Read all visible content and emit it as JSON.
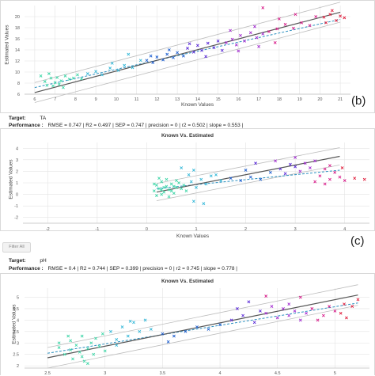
{
  "panels": [
    {
      "letter": "(b)",
      "ylabel": "Estimated Values",
      "xlabel": "Known Values",
      "title": ""
    },
    {
      "letter": "(c)",
      "ylabel": "Estimated Values",
      "xlabel": "Known Values",
      "title": "Known Vs. Estimated"
    },
    {
      "letter": "",
      "ylabel": "Estimated Values",
      "xlabel": "",
      "title": "Known Vs. Estimated"
    }
  ],
  "target_label": "Target:",
  "performance_label": "Performance :",
  "targets": [
    {
      "name": "TA",
      "performance": "RMSE = 0.747 | R2 = 0.497 | SEP = 0.747 | precision = 0 | r2 = 0.502 | slope = 0.553 |"
    },
    {
      "name": "pH",
      "performance": "RMSE = 0.4 | R2 = 0.744 | SEP = 0.399 | precision = 0 | r2 = 0.745 | slope = 0.778 |"
    }
  ],
  "filter_button": "Filter All",
  "colors": {
    "grid": "#e3e3e3",
    "regression": "#555555",
    "fit": "#2a8fbf",
    "band": "#bdbdbd",
    "cluster": [
      "#3fd6a8",
      "#35b8d8",
      "#1e5fd0",
      "#5b2bd8",
      "#a22bd0",
      "#d81c8a",
      "#e01e3c"
    ]
  },
  "chart_data": [
    {
      "type": "scatter",
      "title": "",
      "xlabel": "Known Values",
      "ylabel": "Estimated Values",
      "xlim": [
        5.5,
        21.5
      ],
      "ylim": [
        6,
        22
      ],
      "xticks": [
        6,
        7,
        8,
        9,
        10,
        11,
        12,
        13,
        14,
        15,
        16,
        17,
        18,
        19,
        20,
        21
      ],
      "yticks": [
        6,
        8,
        10,
        12,
        14,
        16,
        18,
        20
      ],
      "regression": [
        [
          6,
          6.3
        ],
        [
          21,
          20.8
        ]
      ],
      "fit": [
        [
          6,
          7.2
        ],
        [
          21,
          19.5
        ]
      ],
      "band_offset": 1.8,
      "points": [
        [
          6.3,
          9.3,
          0
        ],
        [
          6.5,
          8.3,
          0
        ],
        [
          6.6,
          7.6,
          0
        ],
        [
          6.8,
          8.9,
          0
        ],
        [
          7,
          8.1,
          0
        ],
        [
          7.1,
          9,
          0
        ],
        [
          7.3,
          8.4,
          0
        ],
        [
          7.5,
          9.3,
          0
        ],
        [
          7.7,
          8.7,
          0
        ],
        [
          6.9,
          7.5,
          0
        ],
        [
          7.2,
          7.8,
          0
        ],
        [
          7.9,
          8.9,
          0
        ],
        [
          8.1,
          9.5,
          0
        ],
        [
          7.4,
          7.2,
          0
        ],
        [
          6.7,
          9.7,
          0
        ],
        [
          8.3,
          8.8,
          0
        ],
        [
          8.6,
          9.7,
          1
        ],
        [
          9,
          10.1,
          1
        ],
        [
          9.3,
          9.5,
          1
        ],
        [
          9.7,
          10.7,
          1
        ],
        [
          10.1,
          10.3,
          1
        ],
        [
          10.4,
          11.2,
          1
        ],
        [
          10.8,
          10.8,
          1
        ],
        [
          11.2,
          12.1,
          1
        ],
        [
          9.8,
          11.6,
          1
        ],
        [
          10.6,
          13.2,
          1
        ],
        [
          11.5,
          12.1,
          2
        ],
        [
          11.8,
          11.7,
          2
        ],
        [
          12,
          12.7,
          2
        ],
        [
          12.3,
          12.2,
          2
        ],
        [
          12.5,
          13.2,
          2
        ],
        [
          12.8,
          12.6,
          2
        ],
        [
          13,
          13.5,
          2
        ],
        [
          13.3,
          12.9,
          2
        ],
        [
          11.7,
          12.9,
          2
        ],
        [
          12.6,
          14,
          2
        ],
        [
          13.5,
          14.3,
          3
        ],
        [
          13.8,
          13.6,
          3
        ],
        [
          14,
          14.8,
          3
        ],
        [
          14.2,
          13.9,
          3
        ],
        [
          14.5,
          15.2,
          3
        ],
        [
          14.8,
          14.4,
          3
        ],
        [
          15,
          15.6,
          3
        ],
        [
          13.6,
          15.1,
          3
        ],
        [
          14.4,
          12.8,
          3
        ],
        [
          15.2,
          13.9,
          3
        ],
        [
          15.4,
          15.3,
          4
        ],
        [
          15.7,
          15.9,
          4
        ],
        [
          15.9,
          14.9,
          4
        ],
        [
          16.1,
          16.6,
          4
        ],
        [
          16.3,
          15.6,
          4
        ],
        [
          16.6,
          17.1,
          4
        ],
        [
          16.9,
          16.2,
          4
        ],
        [
          17.2,
          16.9,
          4
        ],
        [
          16,
          13.8,
          4
        ],
        [
          17,
          14.6,
          4
        ],
        [
          15.6,
          17.5,
          4
        ],
        [
          16.8,
          18.2,
          4
        ],
        [
          17.5,
          17.3,
          5
        ],
        [
          17.9,
          17.8,
          5
        ],
        [
          18.3,
          18.6,
          5
        ],
        [
          18.7,
          17.9,
          5
        ],
        [
          19.1,
          18.9,
          5
        ],
        [
          19.5,
          18.4,
          5
        ],
        [
          17.8,
          15.3,
          5
        ],
        [
          18.8,
          20.4,
          5
        ],
        [
          18,
          19.6,
          5
        ],
        [
          17.2,
          21.6,
          5
        ],
        [
          19.8,
          20,
          5
        ],
        [
          20.2,
          19.9,
          6
        ],
        [
          20.5,
          20.4,
          6
        ],
        [
          20.8,
          19.3,
          6
        ],
        [
          21,
          20.1,
          6
        ],
        [
          20.6,
          21.1,
          6
        ],
        [
          21.2,
          19.8,
          6
        ],
        [
          20.3,
          18.9,
          6
        ]
      ]
    },
    {
      "type": "scatter",
      "title": "Known Vs. Estimated",
      "xlabel": "Known Values",
      "ylabel": "Estimated Values",
      "xlim": [
        -2.5,
        4.5
      ],
      "ylim": [
        -2.5,
        4.5
      ],
      "xticks": [
        -2,
        -1,
        0,
        1,
        2,
        3,
        4
      ],
      "yticks": [
        -2,
        -1,
        0,
        1,
        2,
        3,
        4
      ],
      "regression": [
        [
          0.2,
          0.2
        ],
        [
          3.9,
          3.3
        ]
      ],
      "fit": [
        [
          0.2,
          0.5
        ],
        [
          3.9,
          2.1
        ]
      ],
      "band_offset": 0.75,
      "points": [
        [
          0.15,
          0.3,
          0
        ],
        [
          0.2,
          0.8,
          0
        ],
        [
          0.25,
          0.5,
          0
        ],
        [
          0.3,
          1.1,
          0
        ],
        [
          0.35,
          0.2,
          0
        ],
        [
          0.4,
          0.7,
          0
        ],
        [
          0.45,
          0.4,
          0
        ],
        [
          0.5,
          0.9,
          0
        ],
        [
          0.55,
          0.1,
          0
        ],
        [
          0.6,
          0.6,
          0
        ],
        [
          0.2,
          -0.1,
          0
        ],
        [
          0.3,
          0.4,
          0
        ],
        [
          0.4,
          1.3,
          0
        ],
        [
          0.5,
          0.3,
          0
        ],
        [
          0.65,
          1,
          0
        ],
        [
          0.7,
          0.5,
          0
        ],
        [
          0.25,
          1.4,
          0
        ],
        [
          0.45,
          -0.2,
          0
        ],
        [
          0.35,
          0.6,
          0
        ],
        [
          0.6,
          1.2,
          0
        ],
        [
          0.15,
          0.9,
          0
        ],
        [
          0.55,
          0.7,
          0
        ],
        [
          0.75,
          0.8,
          0
        ],
        [
          0.8,
          0.3,
          0
        ],
        [
          0.3,
          0.0,
          0
        ],
        [
          0.9,
          1.1,
          1
        ],
        [
          1.0,
          0.6,
          1
        ],
        [
          1.1,
          1.3,
          1
        ],
        [
          1.2,
          0.9,
          1
        ],
        [
          1.3,
          1.6,
          1
        ],
        [
          0.95,
          2.1,
          1
        ],
        [
          0.7,
          2.3,
          1
        ],
        [
          1.5,
          1.2,
          1
        ],
        [
          1.15,
          -0.8,
          1
        ],
        [
          0.95,
          -0.6,
          1
        ],
        [
          1.4,
          1.7,
          1
        ],
        [
          0.85,
          1.7,
          1
        ],
        [
          1.7,
          1.4,
          2
        ],
        [
          1.9,
          1.2,
          2
        ],
        [
          2.1,
          1.5,
          2
        ],
        [
          2.3,
          1.3,
          2
        ],
        [
          2.5,
          1.9,
          2
        ],
        [
          2.0,
          2.1,
          2
        ],
        [
          2.7,
          2.2,
          3
        ],
        [
          2.9,
          2.6,
          3
        ],
        [
          3.0,
          2.4,
          3
        ],
        [
          2.8,
          1.8,
          3
        ],
        [
          2.2,
          2.7,
          3
        ],
        [
          3.1,
          2.0,
          4
        ],
        [
          3.2,
          2.7,
          4
        ],
        [
          3.3,
          2.3,
          4
        ],
        [
          3.4,
          2.9,
          4
        ],
        [
          3.0,
          3.2,
          4
        ],
        [
          2.6,
          2.9,
          4
        ],
        [
          3.5,
          1.6,
          5
        ],
        [
          3.6,
          2.2,
          5
        ],
        [
          3.7,
          1.3,
          5
        ],
        [
          3.8,
          1.9,
          5
        ],
        [
          3.9,
          1.5,
          5
        ],
        [
          3.4,
          1.1,
          5
        ],
        [
          3.7,
          2.5,
          5
        ],
        [
          4.0,
          1.2,
          5
        ],
        [
          3.6,
          0.9,
          5
        ],
        [
          4.2,
          1.4,
          6
        ],
        [
          4.4,
          1.3,
          6
        ],
        [
          3.95,
          2.3,
          6
        ]
      ]
    },
    {
      "type": "scatter",
      "title": "Known Vs. Estimated",
      "xlabel": "",
      "ylabel": "Estimated Values",
      "xlim": [
        2.3,
        5.3
      ],
      "ylim": [
        1.9,
        5.4
      ],
      "xticks": [
        2.5,
        3,
        3.5,
        4,
        4.5,
        5
      ],
      "yticks": [
        2,
        2.5,
        3,
        3.5,
        4,
        4.5,
        5
      ],
      "regression": [
        [
          2.5,
          2.35
        ],
        [
          5.2,
          5.1
        ]
      ],
      "fit": [
        [
          2.5,
          2.55
        ],
        [
          5.2,
          4.75
        ]
      ],
      "band_offset": 0.45,
      "points": [
        [
          2.6,
          2.8,
          0
        ],
        [
          2.65,
          2.5,
          0
        ],
        [
          2.7,
          3.1,
          0
        ],
        [
          2.72,
          2.3,
          0
        ],
        [
          2.75,
          2.9,
          0
        ],
        [
          2.78,
          2.6,
          0
        ],
        [
          2.8,
          3.3,
          0
        ],
        [
          2.82,
          2.2,
          0
        ],
        [
          2.85,
          2.75,
          0
        ],
        [
          2.88,
          3.0,
          0
        ],
        [
          2.9,
          2.5,
          0
        ],
        [
          2.92,
          3.2,
          0
        ],
        [
          2.95,
          2.85,
          0
        ],
        [
          2.7,
          2.7,
          0
        ],
        [
          2.8,
          2.4,
          0
        ],
        [
          2.6,
          3.0,
          0
        ],
        [
          2.98,
          3.4,
          0
        ],
        [
          3.0,
          2.65,
          0
        ],
        [
          2.85,
          2.1,
          0
        ],
        [
          2.68,
          3.3,
          0
        ],
        [
          3.05,
          3.5,
          1
        ],
        [
          3.1,
          3.15,
          1
        ],
        [
          3.15,
          3.7,
          1
        ],
        [
          3.2,
          3.3,
          1
        ],
        [
          3.25,
          3.9,
          1
        ],
        [
          3.3,
          3.5,
          1
        ],
        [
          3.4,
          3.6,
          1
        ],
        [
          3.35,
          4.0,
          1
        ],
        [
          3.1,
          2.9,
          1
        ],
        [
          3.22,
          3.95,
          1
        ],
        [
          3.5,
          3.4,
          2
        ],
        [
          3.6,
          3.3,
          2
        ],
        [
          3.7,
          3.5,
          2
        ],
        [
          3.8,
          3.7,
          2
        ],
        [
          3.9,
          3.6,
          2
        ],
        [
          4.0,
          3.8,
          2
        ],
        [
          3.55,
          3.05,
          2
        ],
        [
          4.1,
          4.0,
          3
        ],
        [
          4.2,
          4.2,
          3
        ],
        [
          4.3,
          3.9,
          3
        ],
        [
          4.35,
          4.4,
          3
        ],
        [
          4.15,
          4.5,
          3
        ],
        [
          4.25,
          4.8,
          3
        ],
        [
          4.4,
          4.3,
          4
        ],
        [
          4.5,
          4.1,
          4
        ],
        [
          4.55,
          4.5,
          4
        ],
        [
          4.6,
          4.2,
          4
        ],
        [
          4.65,
          4.4,
          4
        ],
        [
          4.7,
          4.0,
          4
        ],
        [
          4.45,
          4.6,
          4
        ],
        [
          4.75,
          4.3,
          4
        ],
        [
          4.6,
          4.7,
          4
        ],
        [
          4.8,
          4.5,
          5
        ],
        [
          4.9,
          4.2,
          5
        ],
        [
          4.95,
          4.6,
          5
        ],
        [
          5.0,
          4.4,
          5
        ],
        [
          4.85,
          4.0,
          5
        ],
        [
          4.7,
          5.0,
          5
        ],
        [
          4.4,
          5.05,
          5
        ],
        [
          5.05,
          4.3,
          6
        ],
        [
          5.1,
          4.1,
          6
        ],
        [
          5.15,
          4.6,
          6
        ],
        [
          5.2,
          4.9,
          6
        ],
        [
          5.08,
          4.7,
          6
        ]
      ]
    }
  ]
}
